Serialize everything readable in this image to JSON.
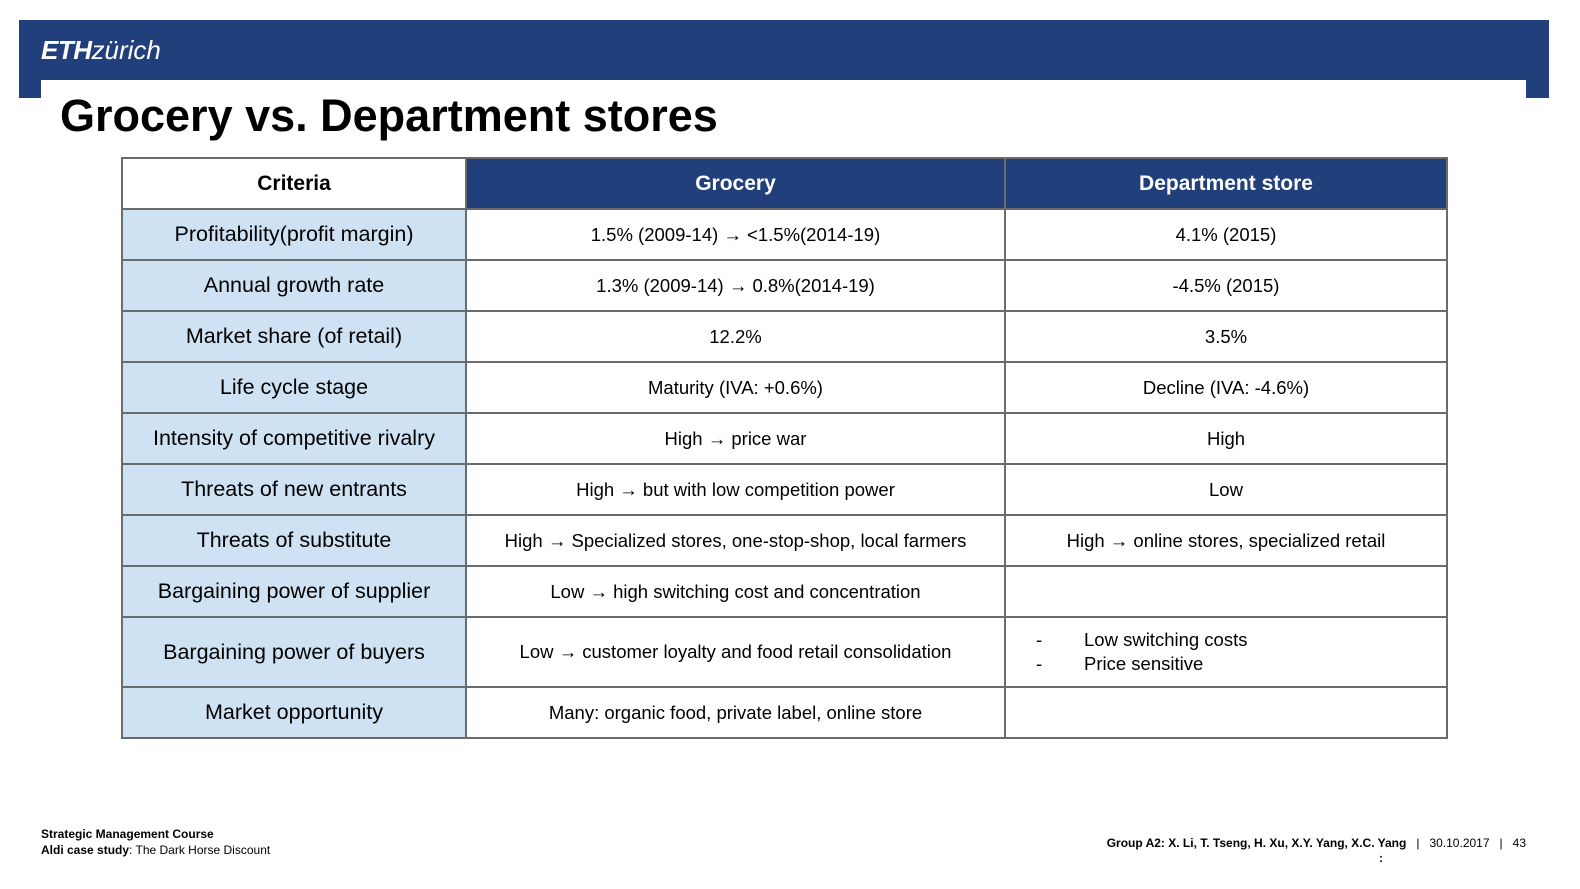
{
  "header": {
    "logo_eth": "ETH",
    "logo_zurich": "zürich",
    "brand_color": "#213f7a"
  },
  "title": "Grocery vs. Department stores",
  "table": {
    "headers": [
      "Criteria",
      "Grocery",
      "Department store"
    ],
    "rows": [
      {
        "criteria": "Profitability(profit margin)",
        "grocery": "1.5% (2009-14) → <1.5%(2014-19)",
        "dept": "4.1% (2015)"
      },
      {
        "criteria": "Annual growth rate",
        "grocery": "1.3% (2009-14) → 0.8%(2014-19)",
        "dept": "-4.5% (2015)"
      },
      {
        "criteria": "Market share (of retail)",
        "grocery": "12.2%",
        "dept": "3.5%"
      },
      {
        "criteria": "Life cycle stage",
        "grocery": "Maturity (IVA: +0.6%)",
        "dept": "Decline (IVA: -4.6%)"
      },
      {
        "criteria": "Intensity of competitive rivalry",
        "grocery": "High → price war",
        "dept": "High"
      },
      {
        "criteria": "Threats of new entrants",
        "grocery": "High → but with low competition power",
        "dept": "Low"
      },
      {
        "criteria": "Threats of substitute",
        "grocery": "High → Specialized stores, one-stop-shop, local farmers",
        "dept": "High → online stores, specialized retail"
      },
      {
        "criteria": "Bargaining power of supplier",
        "grocery": "Low →  high switching cost and concentration",
        "dept": ""
      },
      {
        "criteria": "Bargaining power of buyers",
        "grocery": "Low → customer loyalty and food retail consolidation",
        "dept_bullets": [
          "Low switching costs",
          "Price sensitive"
        ]
      },
      {
        "criteria": "Market opportunity",
        "grocery": "Many: organic food, private label, online store",
        "dept": ""
      }
    ],
    "criteria_bg": "#cfe2f3"
  },
  "footer": {
    "course_label": "Strategic Management Course",
    "case_label": "Aldi case study",
    "case_title": ": The Dark Horse Discount",
    "group": "Group A2: X. Li, T. Tseng, H. Xu, X.Y. Yang, X.C. Yang",
    "date": "30.10.2017",
    "page": "43",
    "separator": "|",
    "colon": ":"
  }
}
